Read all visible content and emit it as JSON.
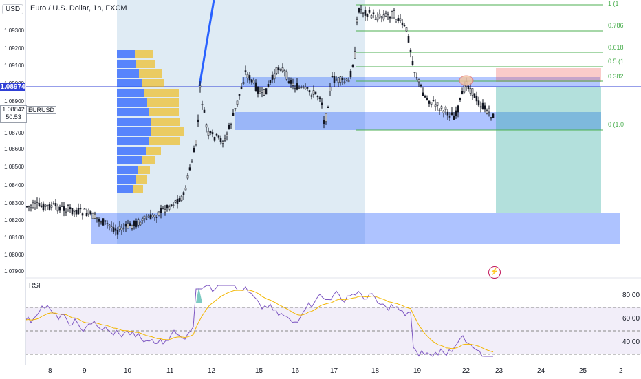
{
  "header": {
    "title": "Euro / U.S. Dollar, 1h, FXCM",
    "currency": "USD"
  },
  "price_axis": {
    "ticks": [
      "1.09300",
      "1.09200",
      "1.09100",
      "1.09000",
      "1.08900",
      "1.08800",
      "1.08700",
      "1.08600",
      "1.08500",
      "1.08400",
      "1.08300",
      "1.08200",
      "1.08100",
      "1.08000",
      "1.07900"
    ],
    "current_price": "1.08974",
    "last_price": "1.08842",
    "countdown": "50:53",
    "symbol_tag": "EURUSD"
  },
  "fib_levels": [
    "1 (1",
    "0.786",
    "0.618",
    "0.5 (1",
    "0.382",
    "0 (1.0"
  ],
  "rsi": {
    "label": "RSI",
    "ticks": [
      "80.00",
      "60.00",
      "40.00"
    ]
  },
  "time_axis": {
    "labels": [
      "8",
      "9",
      "10",
      "11",
      "12",
      "15",
      "16",
      "17",
      "18",
      "19",
      "22",
      "23",
      "24",
      "25",
      "2"
    ],
    "edge_left": "2",
    "edge_right": "2"
  },
  "colors": {
    "up_candle": "#131722",
    "zone_blue": "#2962ff",
    "volume_blue": "#2962ff",
    "volume_yellow": "#f2b600",
    "fib_green": "#4caf50",
    "rsi_line": "#7e57c2",
    "rsi_ma": "#f2b600",
    "price_line": "#2f3fd6",
    "target_zone": "#26a69a",
    "stop_zone": "#ef5350"
  },
  "icons": {
    "lightning": "lightning-icon"
  }
}
